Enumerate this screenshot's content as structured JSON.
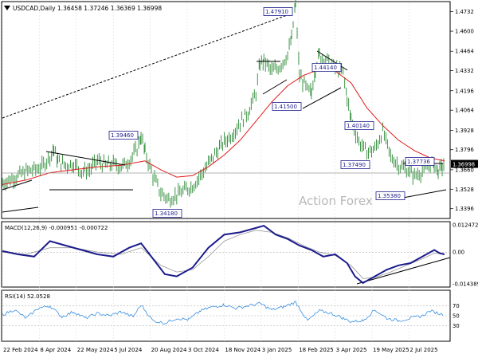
{
  "header": {
    "symbol_icon": "down-triangle-icon",
    "title": "USDCAD,Daily  1.36458 1.37246 1.36369 1.36998"
  },
  "watermark": "Action Forex",
  "colors": {
    "price_bars": "#2a8a34",
    "ma_line": "#e11a1a",
    "macd_line": "#1b1b8c",
    "macd_signal": "#9a9a9a",
    "rsi_line": "#3a8fe0",
    "trendline": "#000000",
    "grid": "#d9d9d9",
    "current_label_bg": "#000000"
  },
  "chart_data": [
    {
      "type": "line",
      "name": "price",
      "title": "USDCAD,Daily  1.36458 1.37246 1.36369 1.36998",
      "x": [
        "22 Feb 2024",
        "8 Apr 2024",
        "22 May 2024",
        "5 Jul 2024",
        "20 Aug 2024",
        "3 Oct 2024",
        "18 Nov 2024",
        "3 Jan 2025",
        "18 Feb 2025",
        "3 Apr 2025",
        "19 May 2025",
        "2 Jul 2025"
      ],
      "y_ticks": [
        1.4732,
        1.46,
        1.4464,
        1.4332,
        1.4196,
        1.4064,
        1.3928,
        1.3796,
        1.366,
        1.3528,
        1.3396
      ],
      "ylim": [
        1.3335,
        1.4795
      ],
      "current_price": 1.36998,
      "series": [
        {
          "values": [
            [
              0,
              1.357
            ],
            [
              10,
              1.3595
            ],
            [
              20,
              1.362
            ],
            [
              30,
              1.365
            ],
            [
              40,
              1.366
            ],
            [
              50,
              1.368
            ],
            [
              60,
              1.375
            ],
            [
              65,
              1.38
            ],
            [
              70,
              1.372
            ],
            [
              80,
              1.369
            ],
            [
              90,
              1.37
            ],
            [
              100,
              1.365
            ],
            [
              110,
              1.366
            ],
            [
              120,
              1.372
            ],
            [
              130,
              1.369
            ],
            [
              140,
              1.37
            ],
            [
              150,
              1.368
            ],
            [
              160,
              1.372
            ],
            [
              170,
              1.38
            ],
            [
              175,
              1.389
            ],
            [
              180,
              1.378
            ],
            [
              190,
              1.362
            ],
            [
              200,
              1.35
            ],
            [
              210,
              1.346
            ],
            [
              220,
              1.349
            ],
            [
              230,
              1.352
            ],
            [
              240,
              1.355
            ],
            [
              250,
              1.362
            ],
            [
              260,
              1.37
            ],
            [
              270,
              1.378
            ],
            [
              280,
              1.385
            ],
            [
              290,
              1.39
            ],
            [
              300,
              1.398
            ],
            [
              310,
              1.405
            ],
            [
              320,
              1.418
            ],
            [
              325,
              1.438
            ],
            [
              330,
              1.44
            ],
            [
              340,
              1.433
            ],
            [
              350,
              1.436
            ],
            [
              360,
              1.444
            ],
            [
              365,
              1.455
            ],
            [
              370,
              1.479
            ],
            [
              375,
              1.43
            ],
            [
              385,
              1.42
            ],
            [
              390,
              1.418
            ],
            [
              395,
              1.435
            ],
            [
              400,
              1.444
            ],
            [
              410,
              1.44
            ],
            [
              420,
              1.435
            ],
            [
              430,
              1.432
            ],
            [
              435,
              1.415
            ],
            [
              440,
              1.4
            ],
            [
              450,
              1.385
            ],
            [
              460,
              1.378
            ],
            [
              470,
              1.38
            ],
            [
              480,
              1.392
            ],
            [
              490,
              1.375
            ],
            [
              500,
              1.369
            ],
            [
              510,
              1.366
            ],
            [
              520,
              1.362
            ],
            [
              530,
              1.365
            ],
            [
              540,
              1.37
            ],
            [
              545,
              1.369
            ],
            [
              550,
              1.365
            ],
            [
              555,
              1.368
            ],
            [
              558,
              1.37
            ]
          ]
        },
        {
          "name": "MA",
          "values": [
            [
              0,
              1.356
            ],
            [
              30,
              1.359
            ],
            [
              60,
              1.364
            ],
            [
              90,
              1.366
            ],
            [
              120,
              1.368
            ],
            [
              150,
              1.369
            ],
            [
              180,
              1.372
            ],
            [
              200,
              1.366
            ],
            [
              220,
              1.361
            ],
            [
              240,
              1.362
            ],
            [
              260,
              1.368
            ],
            [
              280,
              1.376
            ],
            [
              300,
              1.386
            ],
            [
              320,
              1.399
            ],
            [
              340,
              1.412
            ],
            [
              360,
              1.423
            ],
            [
              380,
              1.43
            ],
            [
              400,
              1.434
            ],
            [
              420,
              1.433
            ],
            [
              440,
              1.425
            ],
            [
              460,
              1.408
            ],
            [
              480,
              1.396
            ],
            [
              500,
              1.386
            ],
            [
              520,
              1.379
            ],
            [
              540,
              1.374
            ],
            [
              558,
              1.372
            ]
          ]
        }
      ],
      "annotations": [
        "1.47910",
        "1.44140",
        "1.41500",
        "1.40140",
        "1.39460",
        "1.37490",
        "1.37736",
        "1.35380",
        "1.34180",
        "1.36998"
      ]
    },
    {
      "type": "line",
      "name": "macd",
      "title": "MACD(12,26,9) -0.000951 -0.000722",
      "y_ticks": [
        0.012472,
        0.0,
        -0.014389
      ],
      "ylim": [
        -0.0155,
        0.0135
      ],
      "series": [
        {
          "values": [
            [
              0,
              0.0005
            ],
            [
              20,
              -0.001
            ],
            [
              40,
              -0.002
            ],
            [
              60,
              0.005
            ],
            [
              80,
              0.003
            ],
            [
              100,
              0.001
            ],
            [
              120,
              -0.001
            ],
            [
              140,
              -0.002
            ],
            [
              160,
              0.002
            ],
            [
              175,
              0.004
            ],
            [
              190,
              -0.003
            ],
            [
              205,
              -0.01
            ],
            [
              220,
              -0.011
            ],
            [
              240,
              -0.007
            ],
            [
              260,
              0.002
            ],
            [
              280,
              0.008
            ],
            [
              300,
              0.009
            ],
            [
              320,
              0.011
            ],
            [
              330,
              0.012
            ],
            [
              345,
              0.008
            ],
            [
              360,
              0.006
            ],
            [
              375,
              0.003
            ],
            [
              390,
              0.001
            ],
            [
              405,
              -0.002
            ],
            [
              420,
              -0.001
            ],
            [
              435,
              -0.005
            ],
            [
              445,
              -0.011
            ],
            [
              455,
              -0.014
            ],
            [
              470,
              -0.011
            ],
            [
              485,
              -0.008
            ],
            [
              500,
              -0.006
            ],
            [
              515,
              -0.005
            ],
            [
              530,
              -0.002
            ],
            [
              545,
              0.001
            ],
            [
              552,
              -0.0005
            ],
            [
              558,
              -0.001
            ]
          ]
        },
        {
          "values": [
            [
              0,
              0.0
            ],
            [
              30,
              -0.001
            ],
            [
              60,
              0.002
            ],
            [
              90,
              0.002
            ],
            [
              120,
              0.0
            ],
            [
              150,
              -0.001
            ],
            [
              175,
              0.002
            ],
            [
              200,
              -0.006
            ],
            [
              220,
              -0.009
            ],
            [
              240,
              -0.008
            ],
            [
              260,
              -0.002
            ],
            [
              280,
              0.005
            ],
            [
              300,
              0.008
            ],
            [
              320,
              0.01
            ],
            [
              340,
              0.009
            ],
            [
              360,
              0.0065
            ],
            [
              380,
              0.003
            ],
            [
              400,
              0.0
            ],
            [
              420,
              -0.0015
            ],
            [
              440,
              -0.006
            ],
            [
              455,
              -0.012
            ],
            [
              470,
              -0.0115
            ],
            [
              490,
              -0.009
            ],
            [
              510,
              -0.006
            ],
            [
              530,
              -0.003
            ],
            [
              545,
              -0.0005
            ],
            [
              558,
              -0.0007
            ]
          ]
        }
      ]
    },
    {
      "type": "line",
      "name": "rsi",
      "title": "RSI(14) 52.0528",
      "y_ticks": [
        70,
        50,
        30
      ],
      "ylim": [
        0,
        100
      ],
      "series": [
        {
          "values": [
            [
              0,
              52
            ],
            [
              15,
              62
            ],
            [
              30,
              45
            ],
            [
              45,
              65
            ],
            [
              60,
              70
            ],
            [
              75,
              48
            ],
            [
              90,
              58
            ],
            [
              105,
              45
            ],
            [
              120,
              55
            ],
            [
              135,
              50
            ],
            [
              150,
              58
            ],
            [
              165,
              48
            ],
            [
              175,
              72
            ],
            [
              190,
              40
            ],
            [
              205,
              35
            ],
            [
              220,
              45
            ],
            [
              235,
              42
            ],
            [
              250,
              60
            ],
            [
              265,
              68
            ],
            [
              280,
              72
            ],
            [
              295,
              65
            ],
            [
              310,
              70
            ],
            [
              325,
              75
            ],
            [
              340,
              62
            ],
            [
              355,
              68
            ],
            [
              370,
              78
            ],
            [
              385,
              40
            ],
            [
              400,
              60
            ],
            [
              415,
              55
            ],
            [
              430,
              45
            ],
            [
              440,
              38
            ],
            [
              455,
              40
            ],
            [
              470,
              62
            ],
            [
              485,
              45
            ],
            [
              500,
              40
            ],
            [
              515,
              45
            ],
            [
              530,
              50
            ],
            [
              540,
              60
            ],
            [
              550,
              55
            ],
            [
              558,
              52
            ]
          ]
        }
      ]
    }
  ]
}
